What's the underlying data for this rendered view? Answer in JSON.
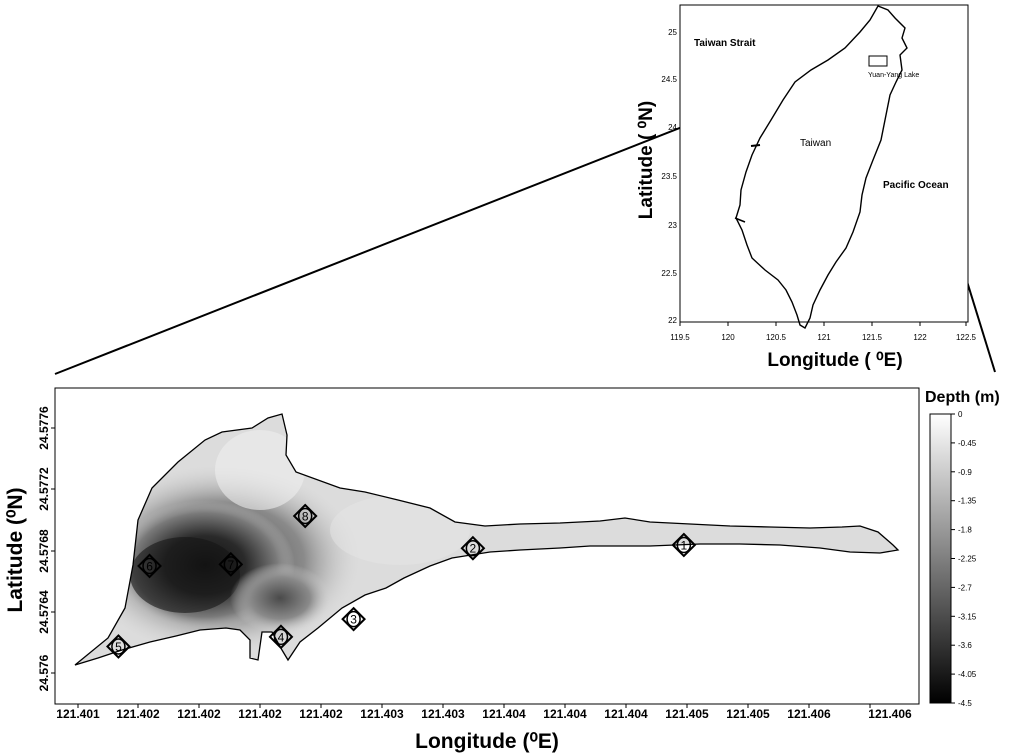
{
  "inset_map": {
    "x_ticks": [
      "119.5",
      "120",
      "120.5",
      "121",
      "121.5",
      "122",
      "122.5"
    ],
    "y_ticks": [
      "25",
      "24.5",
      "24",
      "23.5",
      "23",
      "22.5",
      "22"
    ],
    "x_label": "Longitude ( ⁰E)",
    "y_label": "Latitude ( ⁰N)",
    "labels": {
      "strait": "Taiwan Strait",
      "island": "Taiwan",
      "ocean": "Pacific Ocean",
      "lake": "Yuan-Yang Lake"
    }
  },
  "main_map": {
    "x_ticks": [
      "121.401",
      "121.402",
      "121.402",
      "121.402",
      "121.402",
      "121.403",
      "121.403",
      "121.404",
      "121.404",
      "121.404",
      "121.405",
      "121.405",
      "121.406",
      "121.406"
    ],
    "y_ticks": [
      "24.5776",
      "24.5772",
      "24.5768",
      "24.5764",
      "24.576"
    ],
    "x_label": "Longitude (⁰E)",
    "y_label": "Latitude (⁰N)",
    "stations": [
      {
        "label": "1",
        "lon": 121.40475,
        "lat": 24.57685
      },
      {
        "label": "2",
        "lon": 121.40353,
        "lat": 24.57683
      },
      {
        "label": "3",
        "lon": 121.40284,
        "lat": 24.57639
      },
      {
        "label": "4",
        "lon": 121.40242,
        "lat": 24.57628
      },
      {
        "label": "5",
        "lon": 121.40148,
        "lat": 24.57622
      },
      {
        "label": "6",
        "lon": 121.40166,
        "lat": 24.57672
      },
      {
        "label": "7",
        "lon": 121.40213,
        "lat": 24.57673
      },
      {
        "label": "8",
        "lon": 121.40256,
        "lat": 24.57703
      }
    ]
  },
  "colorbar": {
    "title": "Depth (m)",
    "ticks": [
      "0",
      "-0.45",
      "-0.9",
      "-1.35",
      "-1.8",
      "-2.25",
      "-2.7",
      "-3.15",
      "-3.6",
      "-4.05",
      "-4.5"
    ],
    "min": -4.5,
    "max": 0
  }
}
